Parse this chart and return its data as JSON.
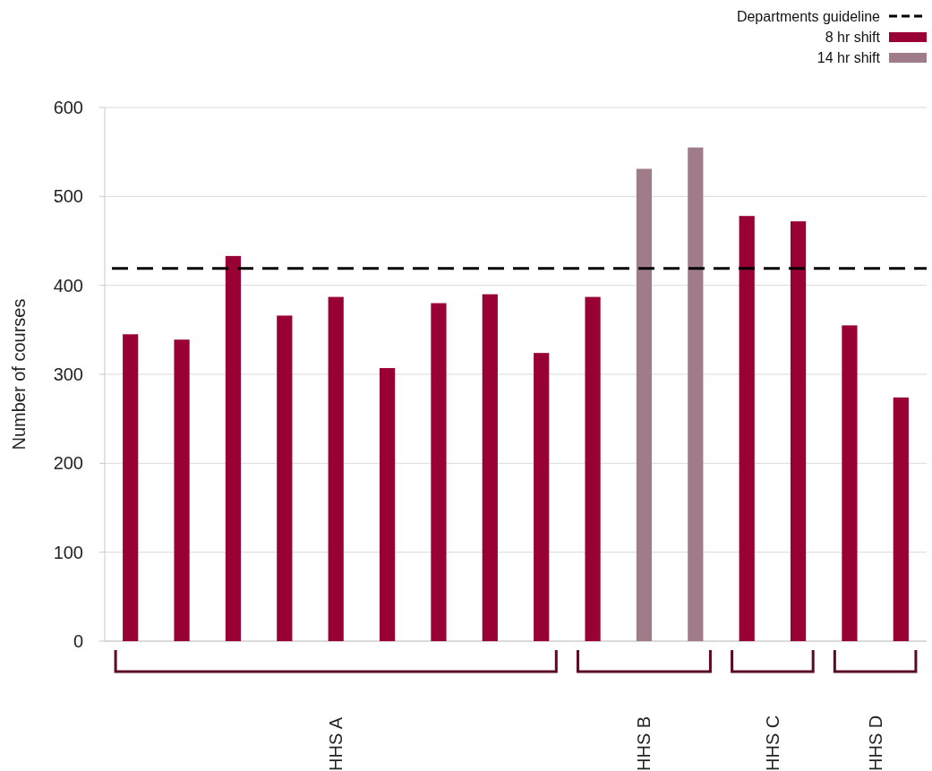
{
  "chart_data": {
    "type": "bar",
    "ylabel": "Number of courses",
    "categories": [
      null,
      null,
      null,
      null,
      null,
      null,
      null,
      null,
      null,
      null,
      null,
      null,
      null,
      null,
      null,
      null
    ],
    "ylim": [
      0,
      600
    ],
    "yticks": [
      0,
      100,
      200,
      300,
      400,
      500,
      600
    ],
    "stacked": true,
    "series": [
      {
        "name": "8 hr shift",
        "color": "#990033",
        "values": [
          345,
          339,
          433,
          366,
          387,
          307,
          380,
          390,
          324,
          387,
          null,
          null,
          478,
          472,
          355,
          274
        ]
      },
      {
        "name": "14 hr shift",
        "color": "#a07b8a",
        "values": [
          null,
          null,
          null,
          null,
          null,
          null,
          null,
          null,
          null,
          null,
          531,
          555,
          null,
          null,
          null,
          null
        ]
      }
    ],
    "ref_lines": [
      {
        "axis": "y",
        "value": 419,
        "label": "Departments guideline",
        "color": "#000000",
        "line_style": "dashed"
      }
    ],
    "annotations": [
      "HHS A",
      "HHS B",
      "HHS C",
      "HHS D"
    ],
    "grid": "y",
    "legend": "top right"
  }
}
